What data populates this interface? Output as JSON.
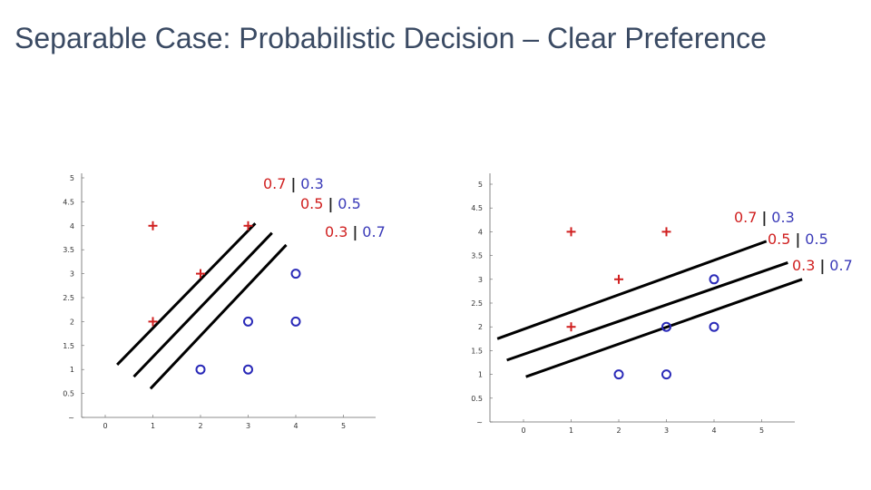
{
  "slide": {
    "title": "Separable Case: Probabilistic Decision – Clear Preference"
  },
  "colors": {
    "plus": "#d02020",
    "circle": "#2a2ab8",
    "line": "#000000",
    "text": "#3a4a63"
  },
  "chart_data": [
    {
      "type": "scatter",
      "x_ticks": [
        "0",
        "1",
        "2",
        "3",
        "4",
        "5"
      ],
      "y_ticks": [
        "~",
        "0.5",
        "1",
        "1.5",
        "2",
        "2.5",
        "3",
        "3.5",
        "4",
        "4.5",
        "5"
      ],
      "xlim": [
        -0.5,
        5.5
      ],
      "ylim": [
        0,
        5.2
      ],
      "series": [
        {
          "marker": "+",
          "color": "#d02020",
          "points": [
            [
              1,
              4
            ],
            [
              3,
              4
            ],
            [
              2,
              3
            ],
            [
              1,
              2
            ]
          ]
        },
        {
          "marker": "o",
          "color": "#2a2ab8",
          "points": [
            [
              4,
              3
            ],
            [
              3,
              2
            ],
            [
              4,
              2
            ],
            [
              2,
              1
            ],
            [
              3,
              1
            ]
          ]
        }
      ],
      "lines": [
        {
          "from": [
            0.25,
            1.1
          ],
          "to": [
            3.15,
            4.05
          ]
        },
        {
          "from": [
            0.6,
            0.85
          ],
          "to": [
            3.5,
            3.85
          ]
        },
        {
          "from": [
            0.95,
            0.6
          ],
          "to": [
            3.8,
            3.6
          ]
        }
      ],
      "annotations": [
        {
          "left": "0.7",
          "right": "0.3"
        },
        {
          "left": "0.5",
          "right": "0.5"
        },
        {
          "left": "0.3",
          "right": "0.7"
        }
      ],
      "grid": false
    },
    {
      "type": "scatter",
      "x_ticks": [
        "0",
        "1",
        "2",
        "3",
        "4",
        "5"
      ],
      "y_ticks": [
        "~",
        "0.5",
        "1",
        "1.5",
        "2",
        "2.5",
        "3",
        "3.5",
        "4",
        "4.5",
        "5"
      ],
      "xlim": [
        -0.5,
        5.5
      ],
      "ylim": [
        0,
        5.2
      ],
      "series": [
        {
          "marker": "+",
          "color": "#d02020",
          "points": [
            [
              1,
              4
            ],
            [
              3,
              4
            ],
            [
              2,
              3
            ],
            [
              1,
              2
            ]
          ]
        },
        {
          "marker": "o",
          "color": "#2a2ab8",
          "points": [
            [
              4,
              3
            ],
            [
              3,
              2
            ],
            [
              4,
              2
            ],
            [
              2,
              1
            ],
            [
              3,
              1
            ]
          ]
        }
      ],
      "lines": [
        {
          "from": [
            -0.55,
            1.75
          ],
          "to": [
            5.1,
            3.8
          ]
        },
        {
          "from": [
            -0.35,
            1.3
          ],
          "to": [
            5.55,
            3.35
          ]
        },
        {
          "from": [
            0.05,
            0.95
          ],
          "to": [
            5.85,
            3.0
          ]
        }
      ],
      "annotations": [
        {
          "left": "0.7",
          "right": "0.3"
        },
        {
          "left": "0.5",
          "right": "0.5"
        },
        {
          "left": "0.3",
          "right": "0.7"
        }
      ],
      "grid": false
    }
  ]
}
